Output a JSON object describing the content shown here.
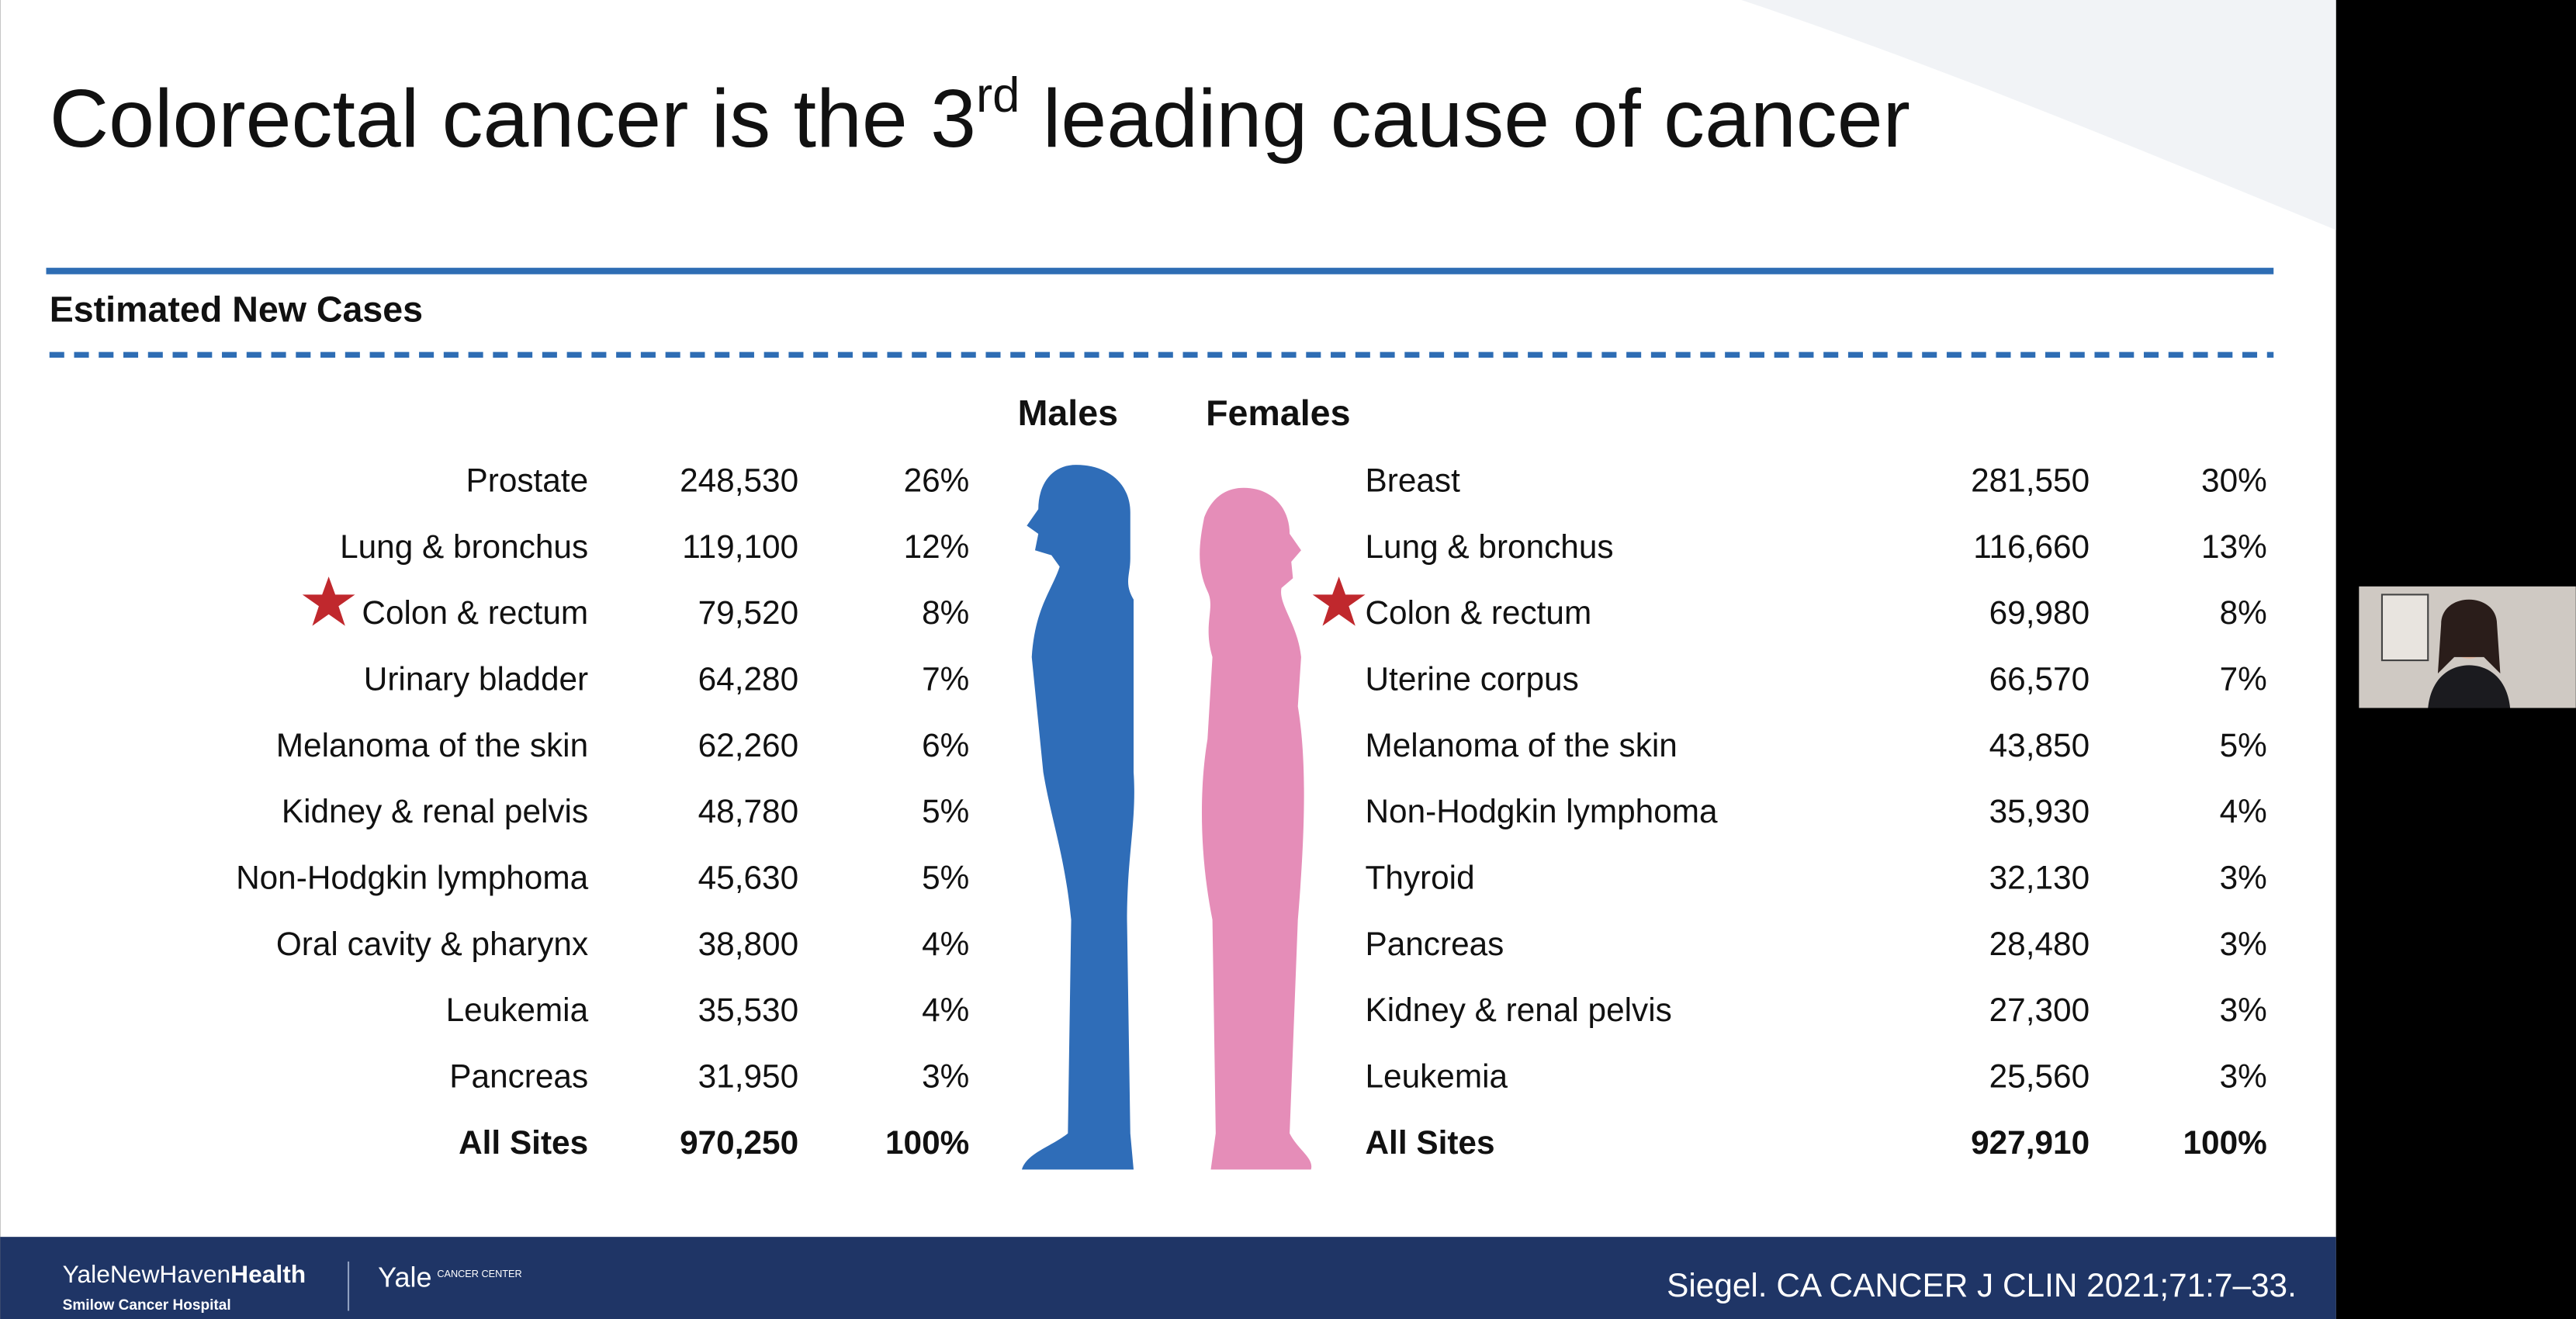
{
  "title": {
    "text": "Colorectal cancer is the 3",
    "superscript": "rd",
    "rest": " leading cause of cancer"
  },
  "section": "Estimated New Cases",
  "table": {
    "males": {
      "header": "Males",
      "rows": [
        [
          "Prostate",
          "248,530",
          "26%"
        ],
        [
          "Lung & bronchus",
          "119,100",
          "12%"
        ],
        [
          "Colon & rectum",
          "79,520",
          "8%"
        ],
        [
          "Urinary bladder",
          "64,280",
          "7%"
        ],
        [
          "Melanoma of the skin",
          "62,260",
          "6%"
        ],
        [
          "Kidney & renal pelvis",
          "48,780",
          "5%"
        ],
        [
          "Non-Hodgkin lymphoma",
          "45,630",
          "5%"
        ],
        [
          "Oral cavity & pharynx",
          "38,800",
          "4%"
        ],
        [
          "Leukemia",
          "35,530",
          "4%"
        ],
        [
          "Pancreas",
          "31,950",
          "3%"
        ],
        [
          "All Sites",
          "970,250",
          "100%"
        ]
      ]
    },
    "females": {
      "header": "Females",
      "rows": [
        [
          "Breast",
          "281,550",
          "30%"
        ],
        [
          "Lung & bronchus",
          "116,660",
          "13%"
        ],
        [
          "Colon & rectum",
          "69,980",
          "8%"
        ],
        [
          "Uterine corpus",
          "66,570",
          "7%"
        ],
        [
          "Melanoma of the skin",
          "43,850",
          "5%"
        ],
        [
          "Non-Hodgkin lymphoma",
          "35,930",
          "4%"
        ],
        [
          "Thyroid",
          "32,130",
          "3%"
        ],
        [
          "Pancreas",
          "28,480",
          "3%"
        ],
        [
          "Kidney & renal pelvis",
          "27,300",
          "3%"
        ],
        [
          "Leukemia",
          "25,560",
          "3%"
        ],
        [
          "All Sites",
          "927,910",
          "100%"
        ]
      ]
    }
  },
  "footer": {
    "brand": "YaleNewHaven",
    "brand_bold": "Health",
    "hospital": "Smilow Cancer Hospital",
    "yale": "Yale",
    "yale_sub": "CANCER CENTER",
    "citation": "Siegel. CA CANCER J CLIN 2021;71:7–33."
  }
}
